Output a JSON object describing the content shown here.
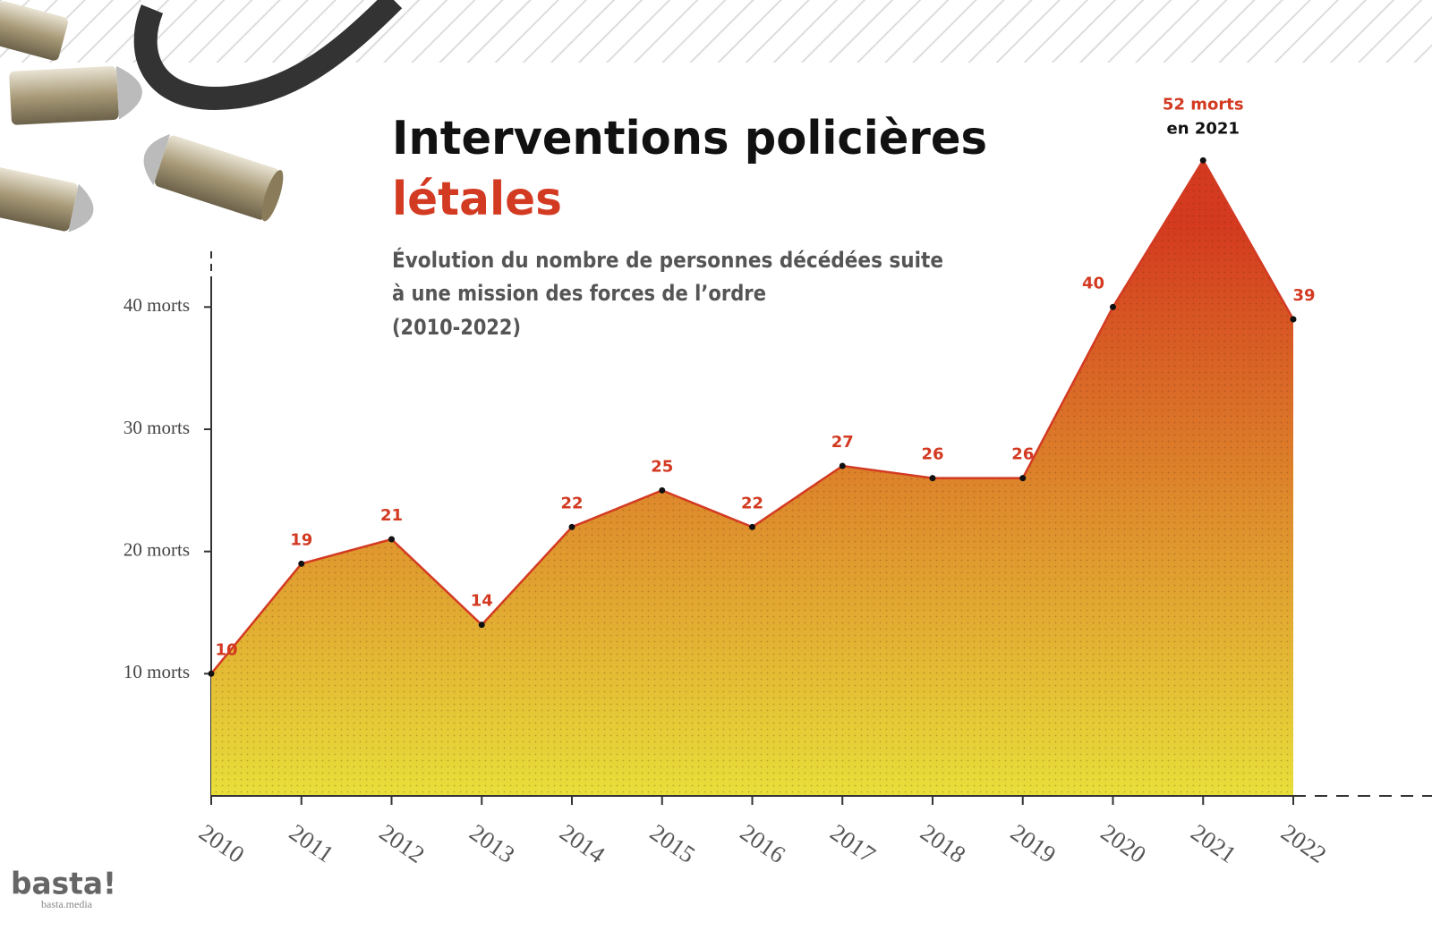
{
  "chart_data": {
    "type": "area",
    "title": "Interventions policières",
    "title_highlight": "létales",
    "subtitle": [
      "Évolution du nombre de personnes décédées suite",
      "à une mission des forces de l’ordre",
      "(2010-2022)"
    ],
    "categories": [
      "2010",
      "2011",
      "2012",
      "2013",
      "2014",
      "2015",
      "2016",
      "2017",
      "2018",
      "2019",
      "2020",
      "2021",
      "2022"
    ],
    "values": [
      10,
      19,
      21,
      14,
      22,
      25,
      22,
      27,
      26,
      26,
      40,
      52,
      39
    ],
    "value_labels": [
      "10",
      "19",
      "21",
      "14",
      "22",
      "25",
      "22",
      "27",
      "26",
      "26",
      "40",
      "52 morts",
      "39"
    ],
    "annotation": "en 2021",
    "ylim": [
      0,
      45
    ],
    "yticks": [
      {
        "value": 10,
        "label": "10 morts"
      },
      {
        "value": 20,
        "label": "20 morts"
      },
      {
        "value": 30,
        "label": "30 morts"
      },
      {
        "value": 40,
        "label": "40 morts"
      }
    ],
    "line_color": "#d33a22",
    "fill_colors": [
      "#d43a1f",
      "#e8df3a"
    ],
    "logo": "basta!",
    "logo_url": "basta.media"
  }
}
